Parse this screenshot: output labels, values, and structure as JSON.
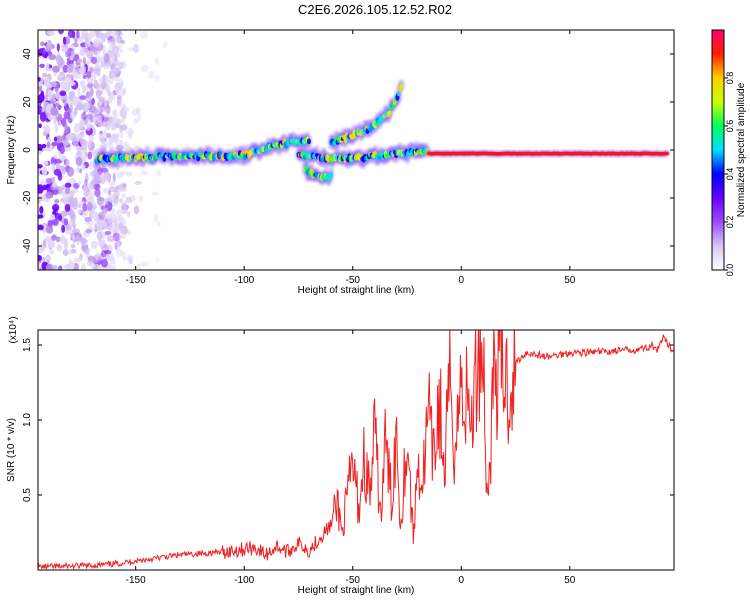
{
  "title": "C2E6.2026.105.12.52.R02",
  "chart_data": [
    {
      "type": "heatmap",
      "xlabel": "Height of straight line (km)",
      "ylabel": "Frequency (Hz)",
      "xlim": [
        -195,
        98
      ],
      "ylim": [
        -50,
        50
      ],
      "xticks": [
        -150,
        -100,
        -50,
        0,
        50
      ],
      "xtick_labels": [
        "-150",
        "-100",
        "-50",
        "0",
        "50"
      ],
      "yticks": [
        40,
        20,
        0,
        -20,
        -40
      ],
      "ytick_labels": [
        "40",
        "20",
        "0",
        "-20",
        "-40"
      ],
      "colorbar": {
        "label": "Normalized spectral amplitude",
        "range": [
          0,
          1
        ],
        "ticks": [
          0,
          0.2,
          0.4,
          0.6,
          0.8
        ],
        "tick_labels": [
          "0.0",
          "0.2",
          "0.4",
          "0.6",
          "0.8"
        ],
        "colors": [
          "#ffffff",
          "#d9c6f2",
          "#9a4bff",
          "#6a00ff",
          "#0000ff",
          "#00e0ff",
          "#00ff60",
          "#c8ff00",
          "#ffd000",
          "#ff2000",
          "#ff0070"
        ]
      },
      "ridges": [
        {
          "x": [
            -168,
            -150,
            -130,
            -110,
            -100,
            -95,
            -90,
            -85,
            -80,
            -75,
            -70
          ],
          "y": [
            -4,
            -3,
            -2.5,
            -2.5,
            -2,
            -1,
            1,
            2,
            3,
            3.5,
            4
          ]
        },
        {
          "x": [
            -75,
            -65,
            -55,
            -45,
            -35,
            -25,
            -15
          ],
          "y": [
            -2,
            -3,
            -3.5,
            -3,
            -2,
            -1,
            -1
          ]
        },
        {
          "x": [
            -15,
            0,
            20,
            40,
            60,
            80,
            95
          ],
          "y": [
            -1.5,
            -1.5,
            -1.5,
            -1.5,
            -1.5,
            -1.5,
            -1.5
          ]
        },
        {
          "x": [
            -72,
            -68,
            -64,
            -60
          ],
          "y": [
            -8,
            -10,
            -11,
            -11
          ]
        },
        {
          "x": [
            -60,
            -50,
            -42,
            -38,
            -33,
            -27
          ],
          "y": [
            3,
            6,
            9,
            12,
            16,
            27
          ]
        }
      ],
      "noise_region_x": [
        -195,
        -155
      ]
    },
    {
      "type": "line",
      "xlabel": "Height of straight line (km)",
      "ylabel": "SNR (10 * v/v)",
      "multiplier": "(x10⁴)",
      "xlim": [
        -195,
        98
      ],
      "ylim": [
        0,
        1.6
      ],
      "xticks": [
        -150,
        -100,
        -50,
        0,
        50
      ],
      "xtick_labels": [
        "-150",
        "-100",
        "-50",
        "0",
        "50"
      ],
      "yticks": [
        0.5,
        1.0,
        1.5
      ],
      "ytick_labels": [
        "0.5",
        "1.0",
        "1.5"
      ],
      "color": "#ee2222",
      "x": [
        -195,
        -170,
        -160,
        -150,
        -140,
        -130,
        -120,
        -110,
        -100,
        -95,
        -90,
        -85,
        -80,
        -75,
        -70,
        -65,
        -60,
        -57,
        -55,
        -52,
        -50,
        -47,
        -45,
        -42,
        -40,
        -37,
        -35,
        -32,
        -30,
        -28,
        -25,
        -22,
        -20,
        -18,
        -15,
        -13,
        -10,
        -8,
        -5,
        -3,
        0,
        3,
        5,
        8,
        10,
        12,
        15,
        18,
        20,
        22,
        25,
        30,
        40,
        50,
        60,
        70,
        80,
        85,
        88,
        90,
        93,
        95,
        98
      ],
      "y": [
        0.02,
        0.03,
        0.04,
        0.06,
        0.08,
        0.1,
        0.11,
        0.12,
        0.14,
        0.15,
        0.1,
        0.16,
        0.12,
        0.18,
        0.13,
        0.22,
        0.3,
        0.45,
        0.25,
        0.52,
        0.7,
        0.4,
        0.75,
        0.5,
        0.9,
        0.35,
        0.85,
        0.45,
        0.95,
        0.3,
        0.9,
        0.2,
        0.75,
        0.55,
        1.05,
        0.7,
        1.15,
        0.6,
        1.3,
        0.8,
        1.25,
        1.1,
        1.0,
        1.45,
        1.55,
        0.4,
        1.3,
        1.35,
        1.3,
        1.2,
        1.38,
        1.45,
        1.42,
        1.45,
        1.45,
        1.46,
        1.47,
        1.48,
        1.5,
        1.45,
        1.55,
        1.5,
        1.46
      ]
    }
  ]
}
